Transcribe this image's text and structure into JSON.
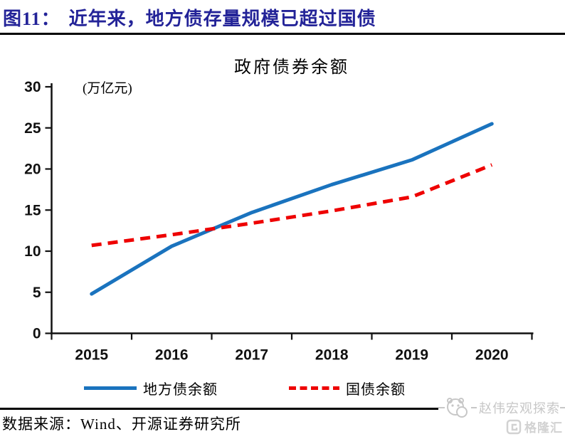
{
  "header": {
    "figure_label": "图11：",
    "title": "近年来，地方债存量规模已超过国债"
  },
  "chart_data": {
    "type": "line",
    "title": "政府债券余额",
    "unit_label": "(万亿元)",
    "categories": [
      "2015",
      "2016",
      "2017",
      "2018",
      "2019",
      "2020"
    ],
    "series": [
      {
        "name": "地方债余额",
        "color": "#1A73BE",
        "style": "solid",
        "values": [
          4.8,
          10.6,
          14.7,
          18.1,
          21.1,
          25.5
        ]
      },
      {
        "name": "国债余额",
        "color": "#EE0000",
        "style": "dashed",
        "values": [
          10.7,
          12.0,
          13.4,
          14.9,
          16.6,
          20.5
        ]
      }
    ],
    "ylim": [
      0,
      30
    ],
    "y_ticks": [
      0,
      5,
      10,
      15,
      20,
      25,
      30
    ],
    "xlabel": "",
    "ylabel": "",
    "grid": false,
    "legend_position": "bottom"
  },
  "footer": {
    "source_label": "数据来源：Wind、开源证券研究所"
  },
  "watermark": {
    "brand": "赵伟宏观探索",
    "logo_text": "格隆汇"
  },
  "colors": {
    "title_navy": "#232398",
    "axis_black": "#111111",
    "watermark_gray": "#C7C7C7",
    "logo_gray": "#D2D2D2"
  }
}
